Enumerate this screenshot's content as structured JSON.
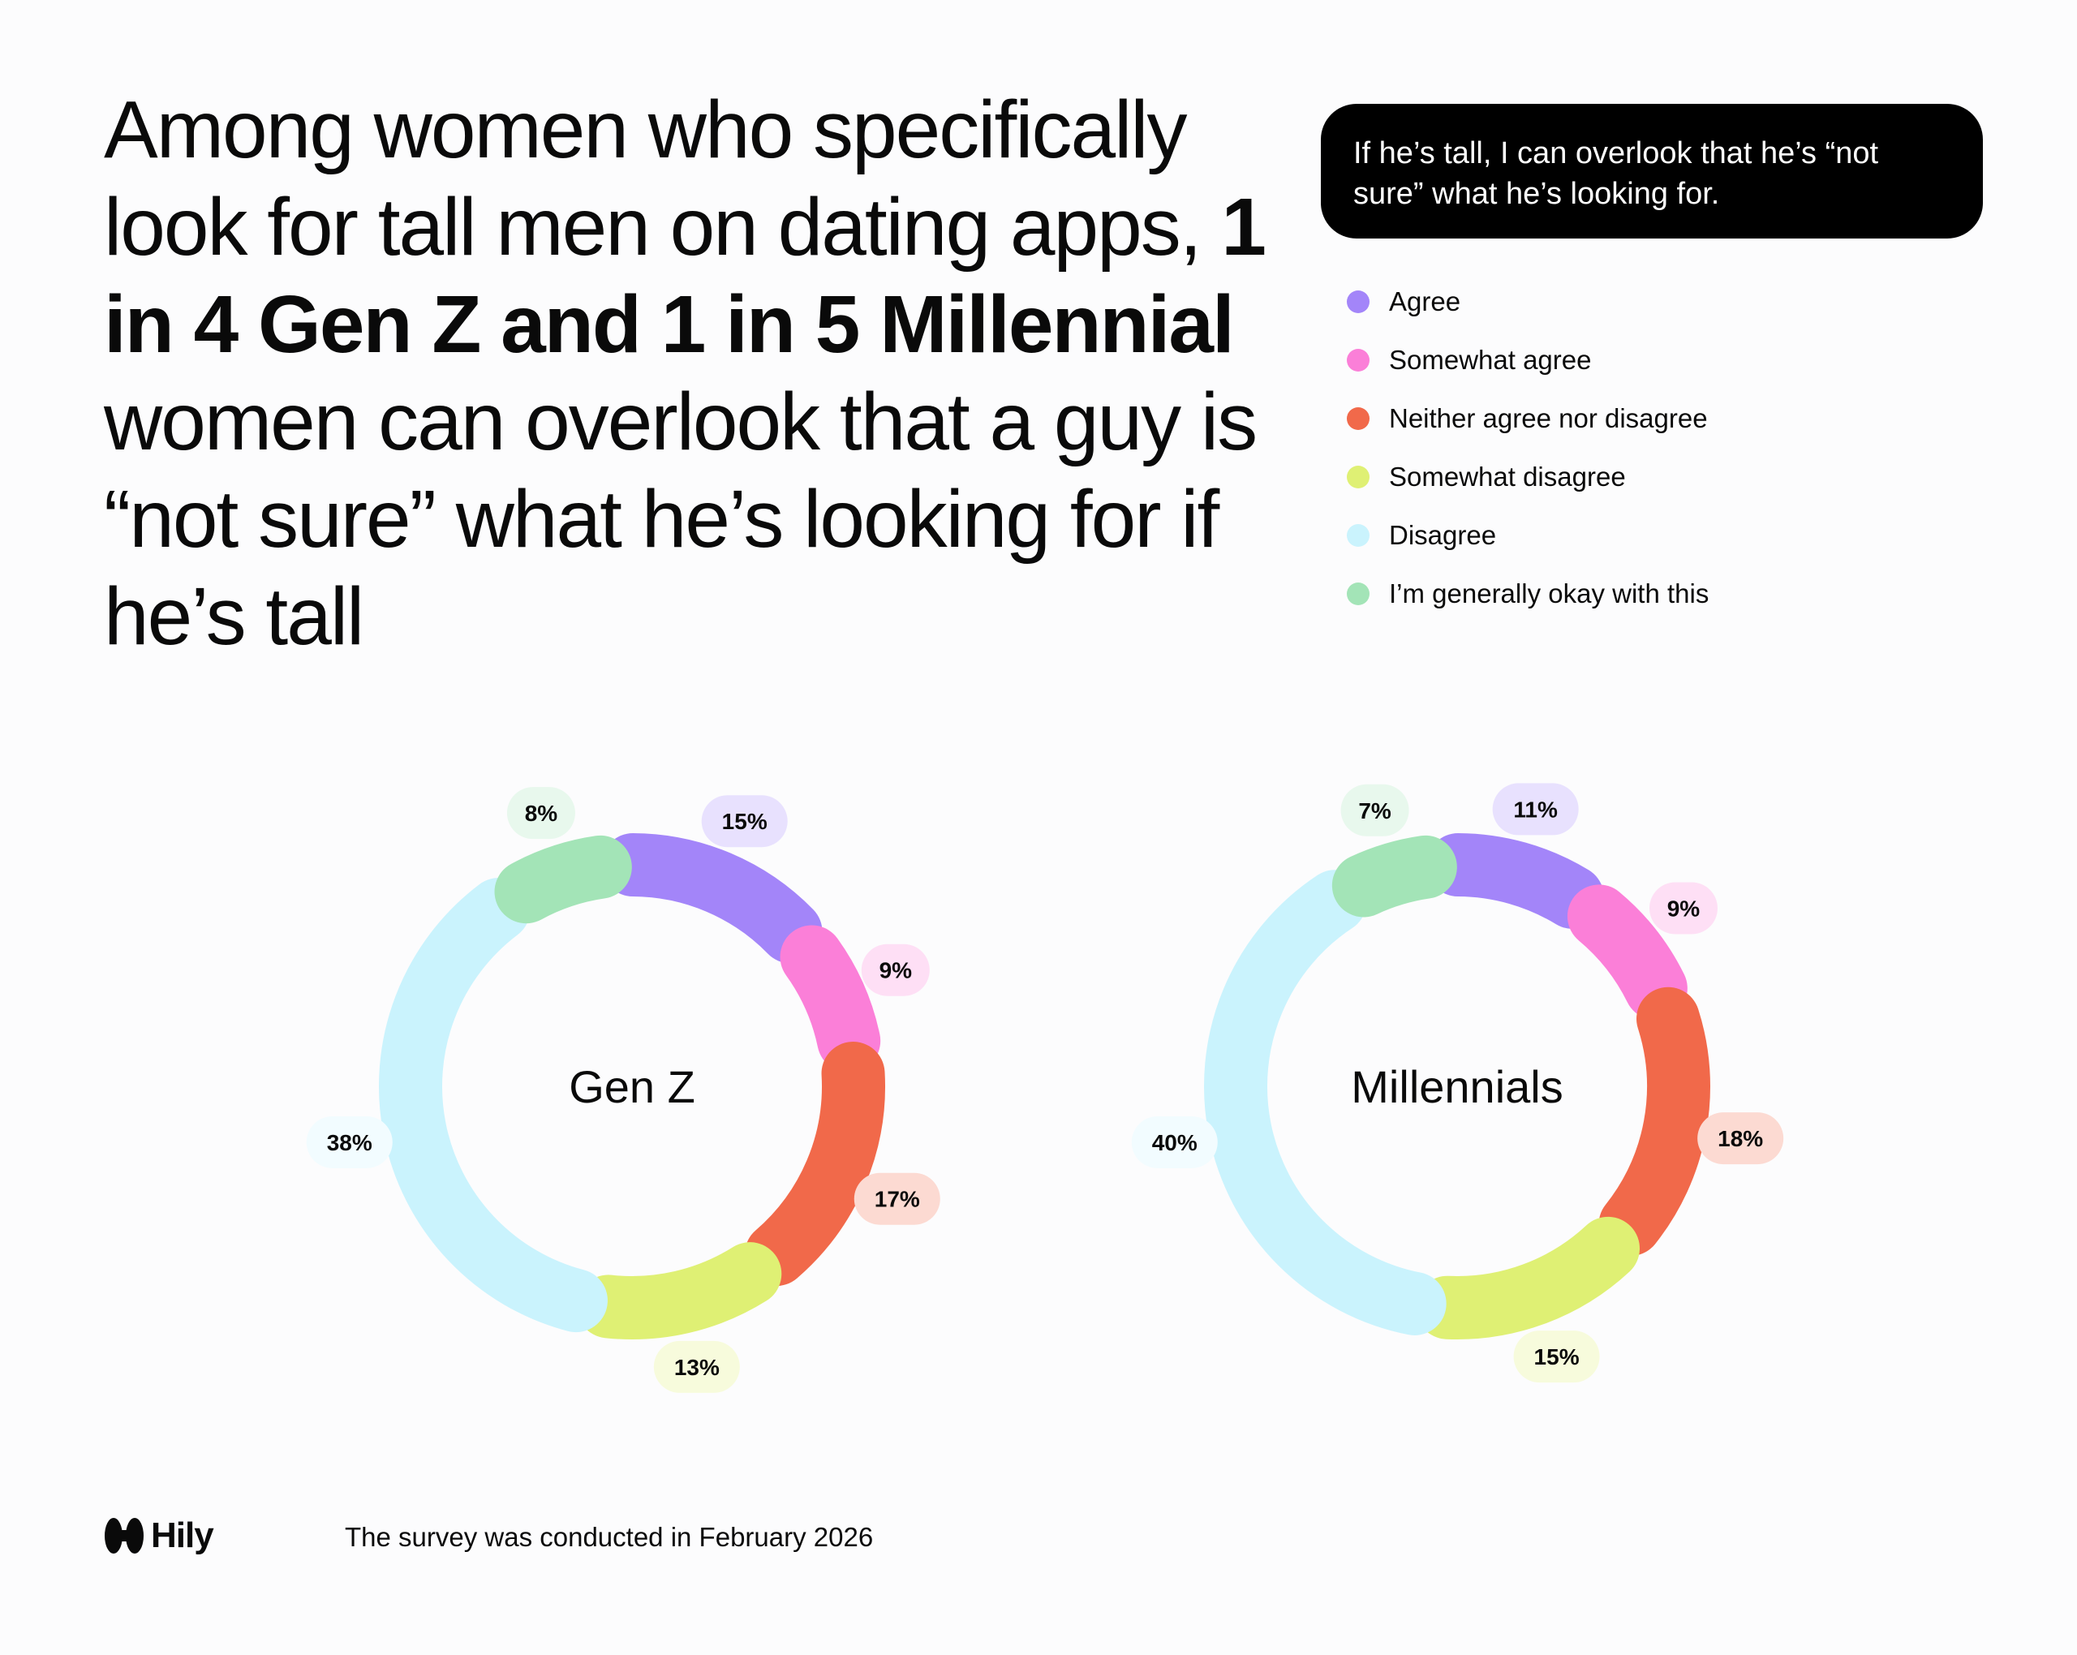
{
  "headline": {
    "part1": "Among women who specifically look for tall men on dating apps, ",
    "bold": "1 in 4 Gen Z and 1 in 5 Millennial",
    "part2": " women can overlook that a guy is “not sure” what he’s looking for if he’s tall"
  },
  "question": "If he’s tall, I can overlook that he’s “not sure” what he’s looking for.",
  "legend": [
    {
      "label": "Agree",
      "color": "#a385f9"
    },
    {
      "label": "Somewhat agree",
      "color": "#fb7fd8"
    },
    {
      "label": "Neither agree nor disagree",
      "color": "#f1694a"
    },
    {
      "label": "Somewhat disagree",
      "color": "#dff074"
    },
    {
      "label": "Disagree",
      "color": "#caf3fd"
    },
    {
      "label": "I’m generally okay with this",
      "color": "#a3e4b7"
    }
  ],
  "chart_data": [
    {
      "type": "pie",
      "title": "Gen Z",
      "categories": [
        "Agree",
        "Somewhat agree",
        "Neither agree nor disagree",
        "Somewhat disagree",
        "Disagree",
        "I’m generally okay with this"
      ],
      "values": [
        15,
        9,
        17,
        13,
        38,
        8
      ],
      "labels": [
        "15%",
        "9%",
        "17%",
        "13%",
        "38%",
        "8%"
      ]
    },
    {
      "type": "pie",
      "title": "Millennials",
      "categories": [
        "Agree",
        "Somewhat agree",
        "Neither agree nor disagree",
        "Somewhat disagree",
        "Disagree",
        "I’m generally okay with this"
      ],
      "values": [
        11,
        9,
        18,
        15,
        40,
        7
      ],
      "labels": [
        "11%",
        "9%",
        "18%",
        "15%",
        "40%",
        "7%"
      ]
    }
  ],
  "footer": {
    "brand": "Hily",
    "note": "The survey was conducted in February 2026"
  }
}
